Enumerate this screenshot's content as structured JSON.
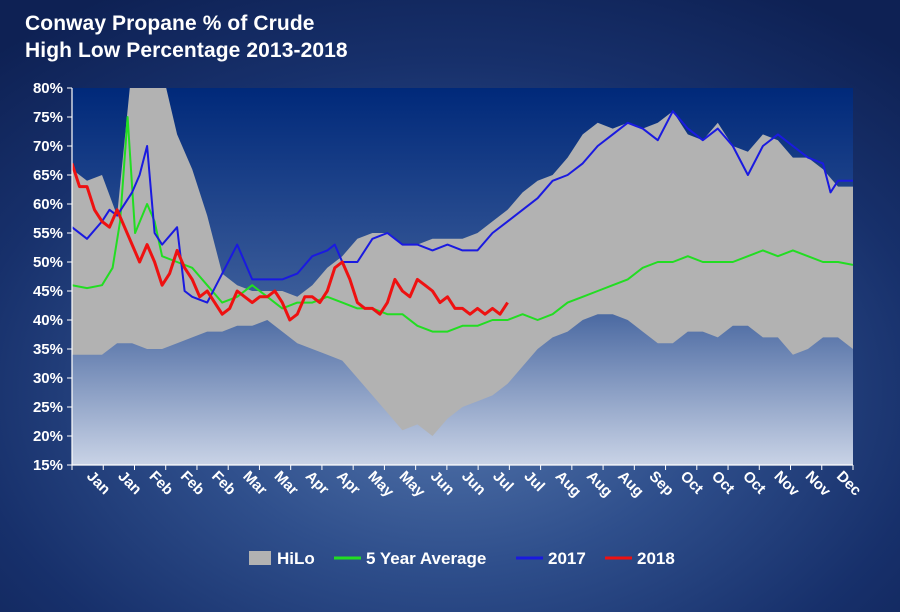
{
  "chart_data": {
    "type": "area",
    "title": "Conway Propane % of Crude",
    "subtitle": "High Low Percentage 2013-2018",
    "xlabel": "",
    "ylabel": "",
    "y_tick_labels": [
      "15%",
      "20%",
      "25%",
      "30%",
      "35%",
      "40%",
      "45%",
      "50%",
      "55%",
      "60%",
      "65%",
      "70%",
      "75%",
      "80%"
    ],
    "ylim": [
      15,
      80
    ],
    "x_tick_labels": [
      "Jan",
      "Jan",
      "Feb",
      "Feb",
      "Feb",
      "Mar",
      "Mar",
      "Apr",
      "Apr",
      "May",
      "May",
      "Jun",
      "Jun",
      "Jul",
      "Jul",
      "Aug",
      "Aug",
      "Aug",
      "Sep",
      "Oct",
      "Oct",
      "Oct",
      "Nov",
      "Nov",
      "Dec"
    ],
    "x_range": [
      0,
      52
    ],
    "grid": false,
    "legend_position": "bottom",
    "colors": {
      "hilo": "#b2b2b2",
      "five_year_avg": "#22dd22",
      "y2017": "#1a1ae0",
      "y2018": "#ee1111",
      "plot_top": "#00297a",
      "plot_bottom": "#c9d3e6"
    },
    "legend": [
      "HiLo",
      "5 Year Average",
      "2017",
      "2018"
    ],
    "series": [
      {
        "name": "HiLo",
        "kind": "band",
        "x": [
          0,
          1,
          2,
          3,
          4,
          5,
          6,
          7,
          8,
          9,
          10,
          11,
          12,
          13,
          14,
          15,
          16,
          17,
          18,
          19,
          20,
          21,
          22,
          23,
          24,
          25,
          26,
          27,
          28,
          29,
          30,
          31,
          32,
          33,
          34,
          35,
          36,
          37,
          38,
          39,
          40,
          41,
          42,
          43,
          44,
          45,
          46,
          47,
          48,
          49,
          50,
          51,
          52
        ],
        "high": [
          66,
          64,
          65,
          58,
          84,
          80,
          83,
          72,
          66,
          58,
          48,
          46,
          45,
          45,
          45,
          44,
          46,
          49,
          51,
          54,
          55,
          55,
          53,
          53,
          54,
          54,
          54,
          55,
          57,
          59,
          62,
          64,
          65,
          68,
          72,
          74,
          73,
          74,
          73,
          74,
          76,
          72,
          71,
          74,
          70,
          69,
          72,
          71,
          68,
          68,
          66,
          63,
          63
        ],
        "low": [
          34,
          34,
          34,
          36,
          36,
          35,
          35,
          36,
          37,
          38,
          38,
          39,
          39,
          40,
          38,
          36,
          35,
          34,
          33,
          30,
          27,
          24,
          21,
          22,
          20,
          23,
          25,
          26,
          27,
          29,
          32,
          35,
          37,
          38,
          40,
          41,
          41,
          40,
          38,
          36,
          36,
          38,
          38,
          37,
          39,
          39,
          37,
          37,
          34,
          35,
          37,
          37,
          35
        ]
      },
      {
        "name": "5 Year Average",
        "kind": "line",
        "x": [
          0,
          1,
          2,
          2.7,
          3.2,
          3.7,
          4.2,
          5,
          5.5,
          6,
          7,
          8,
          9,
          10,
          11,
          12,
          13,
          14,
          15,
          16,
          17,
          18,
          19,
          20,
          21,
          22,
          23,
          24,
          25,
          26,
          27,
          28,
          29,
          30,
          31,
          32,
          33,
          34,
          35,
          36,
          37,
          38,
          39,
          40,
          41,
          42,
          43,
          44,
          45,
          46,
          47,
          48,
          49,
          50,
          51,
          52
        ],
        "values": [
          46,
          45.5,
          46,
          49,
          57,
          75,
          55,
          60,
          57,
          51,
          50,
          49,
          46,
          43,
          44,
          46,
          44,
          42,
          43,
          43,
          44,
          43,
          42,
          42,
          41,
          41,
          39,
          38,
          38,
          39,
          39,
          40,
          40,
          41,
          40,
          41,
          43,
          44,
          45,
          46,
          47,
          49,
          50,
          50,
          51,
          50,
          50,
          50,
          51,
          52,
          51,
          52,
          51,
          50,
          50,
          49.5
        ]
      },
      {
        "name": "2017",
        "kind": "line",
        "x": [
          0,
          1,
          2,
          2.5,
          3,
          4,
          4.5,
          5,
          5.5,
          6,
          7,
          7.5,
          8,
          9,
          10,
          11,
          12,
          13,
          14,
          15,
          16,
          17,
          17.5,
          18,
          19,
          20,
          21,
          22,
          23,
          24,
          25,
          26,
          27,
          28,
          29,
          30,
          31,
          32,
          33,
          34,
          35,
          36,
          37,
          38,
          39,
          40,
          41,
          42,
          43,
          44,
          45,
          46,
          47,
          48,
          49,
          50,
          50.5,
          51,
          52
        ],
        "values": [
          56,
          54,
          57,
          59,
          58,
          62,
          65,
          70,
          55,
          53,
          56,
          45,
          44,
          43,
          48,
          53,
          47,
          47,
          47,
          48,
          51,
          52,
          53,
          50,
          50,
          54,
          55,
          53,
          53,
          52,
          53,
          52,
          52,
          55,
          57,
          59,
          61,
          64,
          65,
          67,
          70,
          72,
          74,
          73,
          71,
          76,
          73,
          71,
          73,
          70,
          65,
          70,
          72,
          70,
          68,
          67,
          62,
          64,
          64
        ]
      },
      {
        "name": "2018",
        "kind": "line",
        "x": [
          0,
          0.5,
          1,
          1.5,
          2,
          2.5,
          3,
          3.5,
          4,
          4.5,
          5,
          5.5,
          6,
          6.5,
          7,
          7.5,
          8,
          8.5,
          9,
          9.5,
          10,
          10.5,
          11,
          11.5,
          12,
          12.5,
          13,
          13.5,
          14,
          14.5,
          15,
          15.5,
          16,
          16.5,
          17,
          17.5,
          18,
          18.5,
          19,
          19.5,
          20,
          20.5,
          21,
          21.5,
          22,
          22.5,
          23,
          23.5,
          24,
          24.5,
          25,
          25.5,
          26,
          26.5,
          27,
          27.5,
          28,
          28.5,
          29
        ],
        "values": [
          67,
          63,
          63,
          59,
          57,
          56,
          59,
          56,
          53,
          50,
          53,
          50,
          46,
          48,
          52,
          49,
          47,
          44,
          45,
          43,
          41,
          42,
          45,
          44,
          43,
          44,
          44,
          45,
          43,
          40,
          41,
          44,
          44,
          43,
          45,
          49,
          50,
          47,
          43,
          42,
          42,
          41,
          43,
          47,
          45,
          44,
          47,
          46,
          45,
          43,
          44,
          42,
          42,
          41,
          42,
          41,
          42,
          41,
          43
        ]
      }
    ]
  }
}
